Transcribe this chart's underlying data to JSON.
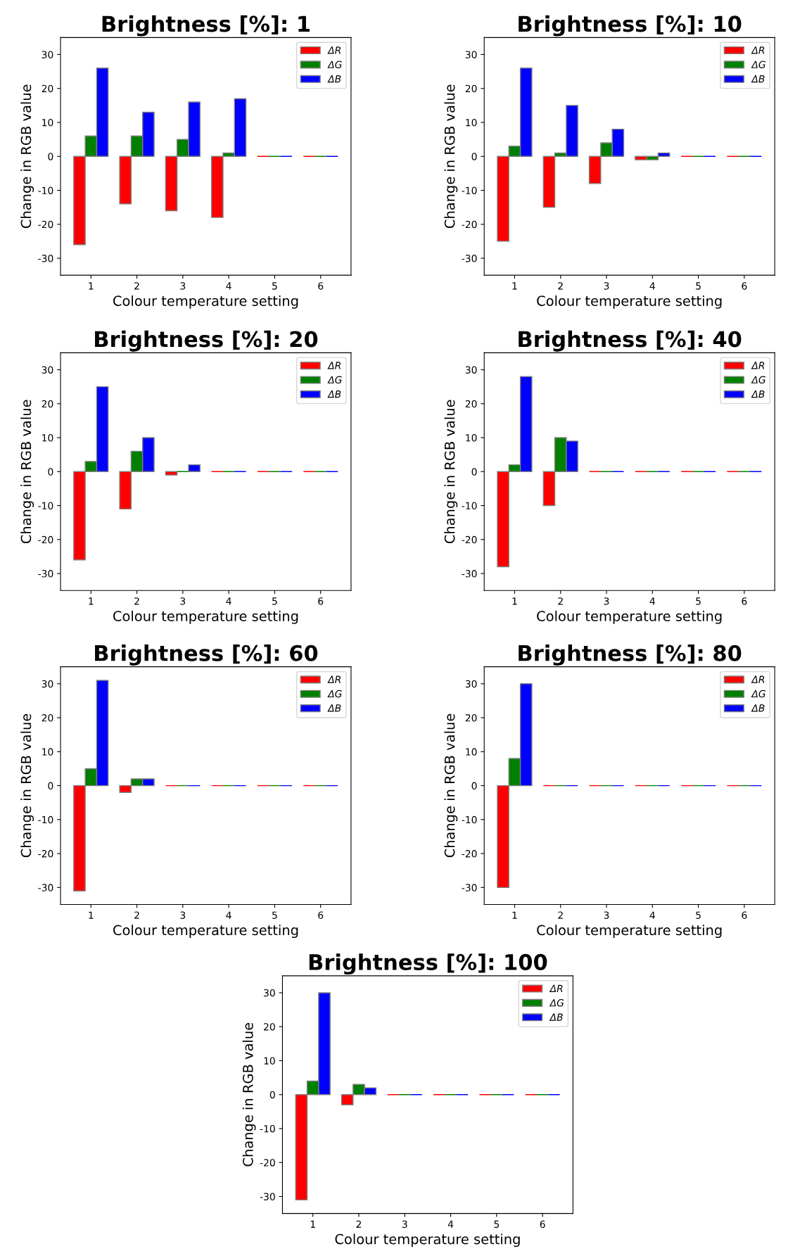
{
  "chart_data": [
    {
      "type": "bar",
      "title": "Brightness [%]: 1",
      "xlabel": "Colour temperature setting",
      "ylabel": "Change in RGB value",
      "categories": [
        "1",
        "2",
        "3",
        "4",
        "5",
        "6"
      ],
      "ylim": [
        -35,
        35
      ],
      "yticks": [
        -30,
        -20,
        -10,
        0,
        10,
        20,
        30
      ],
      "legend": "top right",
      "grid": false,
      "series": [
        {
          "name": "ΔR",
          "color": "#ff0000",
          "values": [
            -26,
            -14,
            -16,
            -18,
            0,
            0
          ]
        },
        {
          "name": "ΔG",
          "color": "#008000",
          "values": [
            6,
            6,
            5,
            1,
            0,
            0
          ]
        },
        {
          "name": "ΔB",
          "color": "#0000ff",
          "values": [
            26,
            13,
            16,
            17,
            0,
            0
          ]
        }
      ]
    },
    {
      "type": "bar",
      "title": "Brightness [%]: 10",
      "xlabel": "Colour temperature setting",
      "ylabel": "Change in RGB value",
      "categories": [
        "1",
        "2",
        "3",
        "4",
        "5",
        "6"
      ],
      "ylim": [
        -35,
        35
      ],
      "yticks": [
        -30,
        -20,
        -10,
        0,
        10,
        20,
        30
      ],
      "legend": "top right",
      "grid": false,
      "series": [
        {
          "name": "ΔR",
          "color": "#ff0000",
          "values": [
            -25,
            -15,
            -8,
            -1,
            0,
            0
          ]
        },
        {
          "name": "ΔG",
          "color": "#008000",
          "values": [
            3,
            1,
            4,
            -1,
            0,
            0
          ]
        },
        {
          "name": "ΔB",
          "color": "#0000ff",
          "values": [
            26,
            15,
            8,
            1,
            0,
            0
          ]
        }
      ]
    },
    {
      "type": "bar",
      "title": "Brightness [%]: 20",
      "xlabel": "Colour temperature setting",
      "ylabel": "Change in RGB value",
      "categories": [
        "1",
        "2",
        "3",
        "4",
        "5",
        "6"
      ],
      "ylim": [
        -35,
        35
      ],
      "yticks": [
        -30,
        -20,
        -10,
        0,
        10,
        20,
        30
      ],
      "legend": "top right",
      "grid": false,
      "series": [
        {
          "name": "ΔR",
          "color": "#ff0000",
          "values": [
            -26,
            -11,
            -1,
            0,
            0,
            0
          ]
        },
        {
          "name": "ΔG",
          "color": "#008000",
          "values": [
            3,
            6,
            0,
            0,
            0,
            0
          ]
        },
        {
          "name": "ΔB",
          "color": "#0000ff",
          "values": [
            25,
            10,
            2,
            0,
            0,
            0
          ]
        }
      ]
    },
    {
      "type": "bar",
      "title": "Brightness [%]: 40",
      "xlabel": "Colour temperature setting",
      "ylabel": "Change in RGB value",
      "categories": [
        "1",
        "2",
        "3",
        "4",
        "5",
        "6"
      ],
      "ylim": [
        -35,
        35
      ],
      "yticks": [
        -30,
        -20,
        -10,
        0,
        10,
        20,
        30
      ],
      "legend": "top right",
      "grid": false,
      "series": [
        {
          "name": "ΔR",
          "color": "#ff0000",
          "values": [
            -28,
            -10,
            0,
            0,
            0,
            0
          ]
        },
        {
          "name": "ΔG",
          "color": "#008000",
          "values": [
            2,
            10,
            0,
            0,
            0,
            0
          ]
        },
        {
          "name": "ΔB",
          "color": "#0000ff",
          "values": [
            28,
            9,
            0,
            0,
            0,
            0
          ]
        }
      ]
    },
    {
      "type": "bar",
      "title": "Brightness [%]: 60",
      "xlabel": "Colour temperature setting",
      "ylabel": "Change in RGB value",
      "categories": [
        "1",
        "2",
        "3",
        "4",
        "5",
        "6"
      ],
      "ylim": [
        -35,
        35
      ],
      "yticks": [
        -30,
        -20,
        -10,
        0,
        10,
        20,
        30
      ],
      "legend": "top right",
      "grid": false,
      "series": [
        {
          "name": "ΔR",
          "color": "#ff0000",
          "values": [
            -31,
            -2,
            0,
            0,
            0,
            0
          ]
        },
        {
          "name": "ΔG",
          "color": "#008000",
          "values": [
            5,
            2,
            0,
            0,
            0,
            0
          ]
        },
        {
          "name": "ΔB",
          "color": "#0000ff",
          "values": [
            31,
            2,
            0,
            0,
            0,
            0
          ]
        }
      ]
    },
    {
      "type": "bar",
      "title": "Brightness [%]: 80",
      "xlabel": "Colour temperature setting",
      "ylabel": "Change in RGB value",
      "categories": [
        "1",
        "2",
        "3",
        "4",
        "5",
        "6"
      ],
      "ylim": [
        -35,
        35
      ],
      "yticks": [
        -30,
        -20,
        -10,
        0,
        10,
        20,
        30
      ],
      "legend": "top right",
      "grid": false,
      "series": [
        {
          "name": "ΔR",
          "color": "#ff0000",
          "values": [
            -30,
            0,
            0,
            0,
            0,
            0
          ]
        },
        {
          "name": "ΔG",
          "color": "#008000",
          "values": [
            8,
            0,
            0,
            0,
            0,
            0
          ]
        },
        {
          "name": "ΔB",
          "color": "#0000ff",
          "values": [
            30,
            0,
            0,
            0,
            0,
            0
          ]
        }
      ]
    },
    {
      "type": "bar",
      "title": "Brightness [%]: 100",
      "xlabel": "Colour temperature setting",
      "ylabel": "Change in RGB value",
      "categories": [
        "1",
        "2",
        "3",
        "4",
        "5",
        "6"
      ],
      "ylim": [
        -35,
        35
      ],
      "yticks": [
        -30,
        -20,
        -10,
        0,
        10,
        20,
        30
      ],
      "legend": "top right",
      "grid": false,
      "series": [
        {
          "name": "ΔR",
          "color": "#ff0000",
          "values": [
            -31,
            -3,
            0,
            0,
            0,
            0
          ]
        },
        {
          "name": "ΔG",
          "color": "#008000",
          "values": [
            4,
            3,
            0,
            0,
            0,
            0
          ]
        },
        {
          "name": "ΔB",
          "color": "#0000ff",
          "values": [
            30,
            2,
            0,
            0,
            0,
            0
          ]
        }
      ]
    }
  ]
}
